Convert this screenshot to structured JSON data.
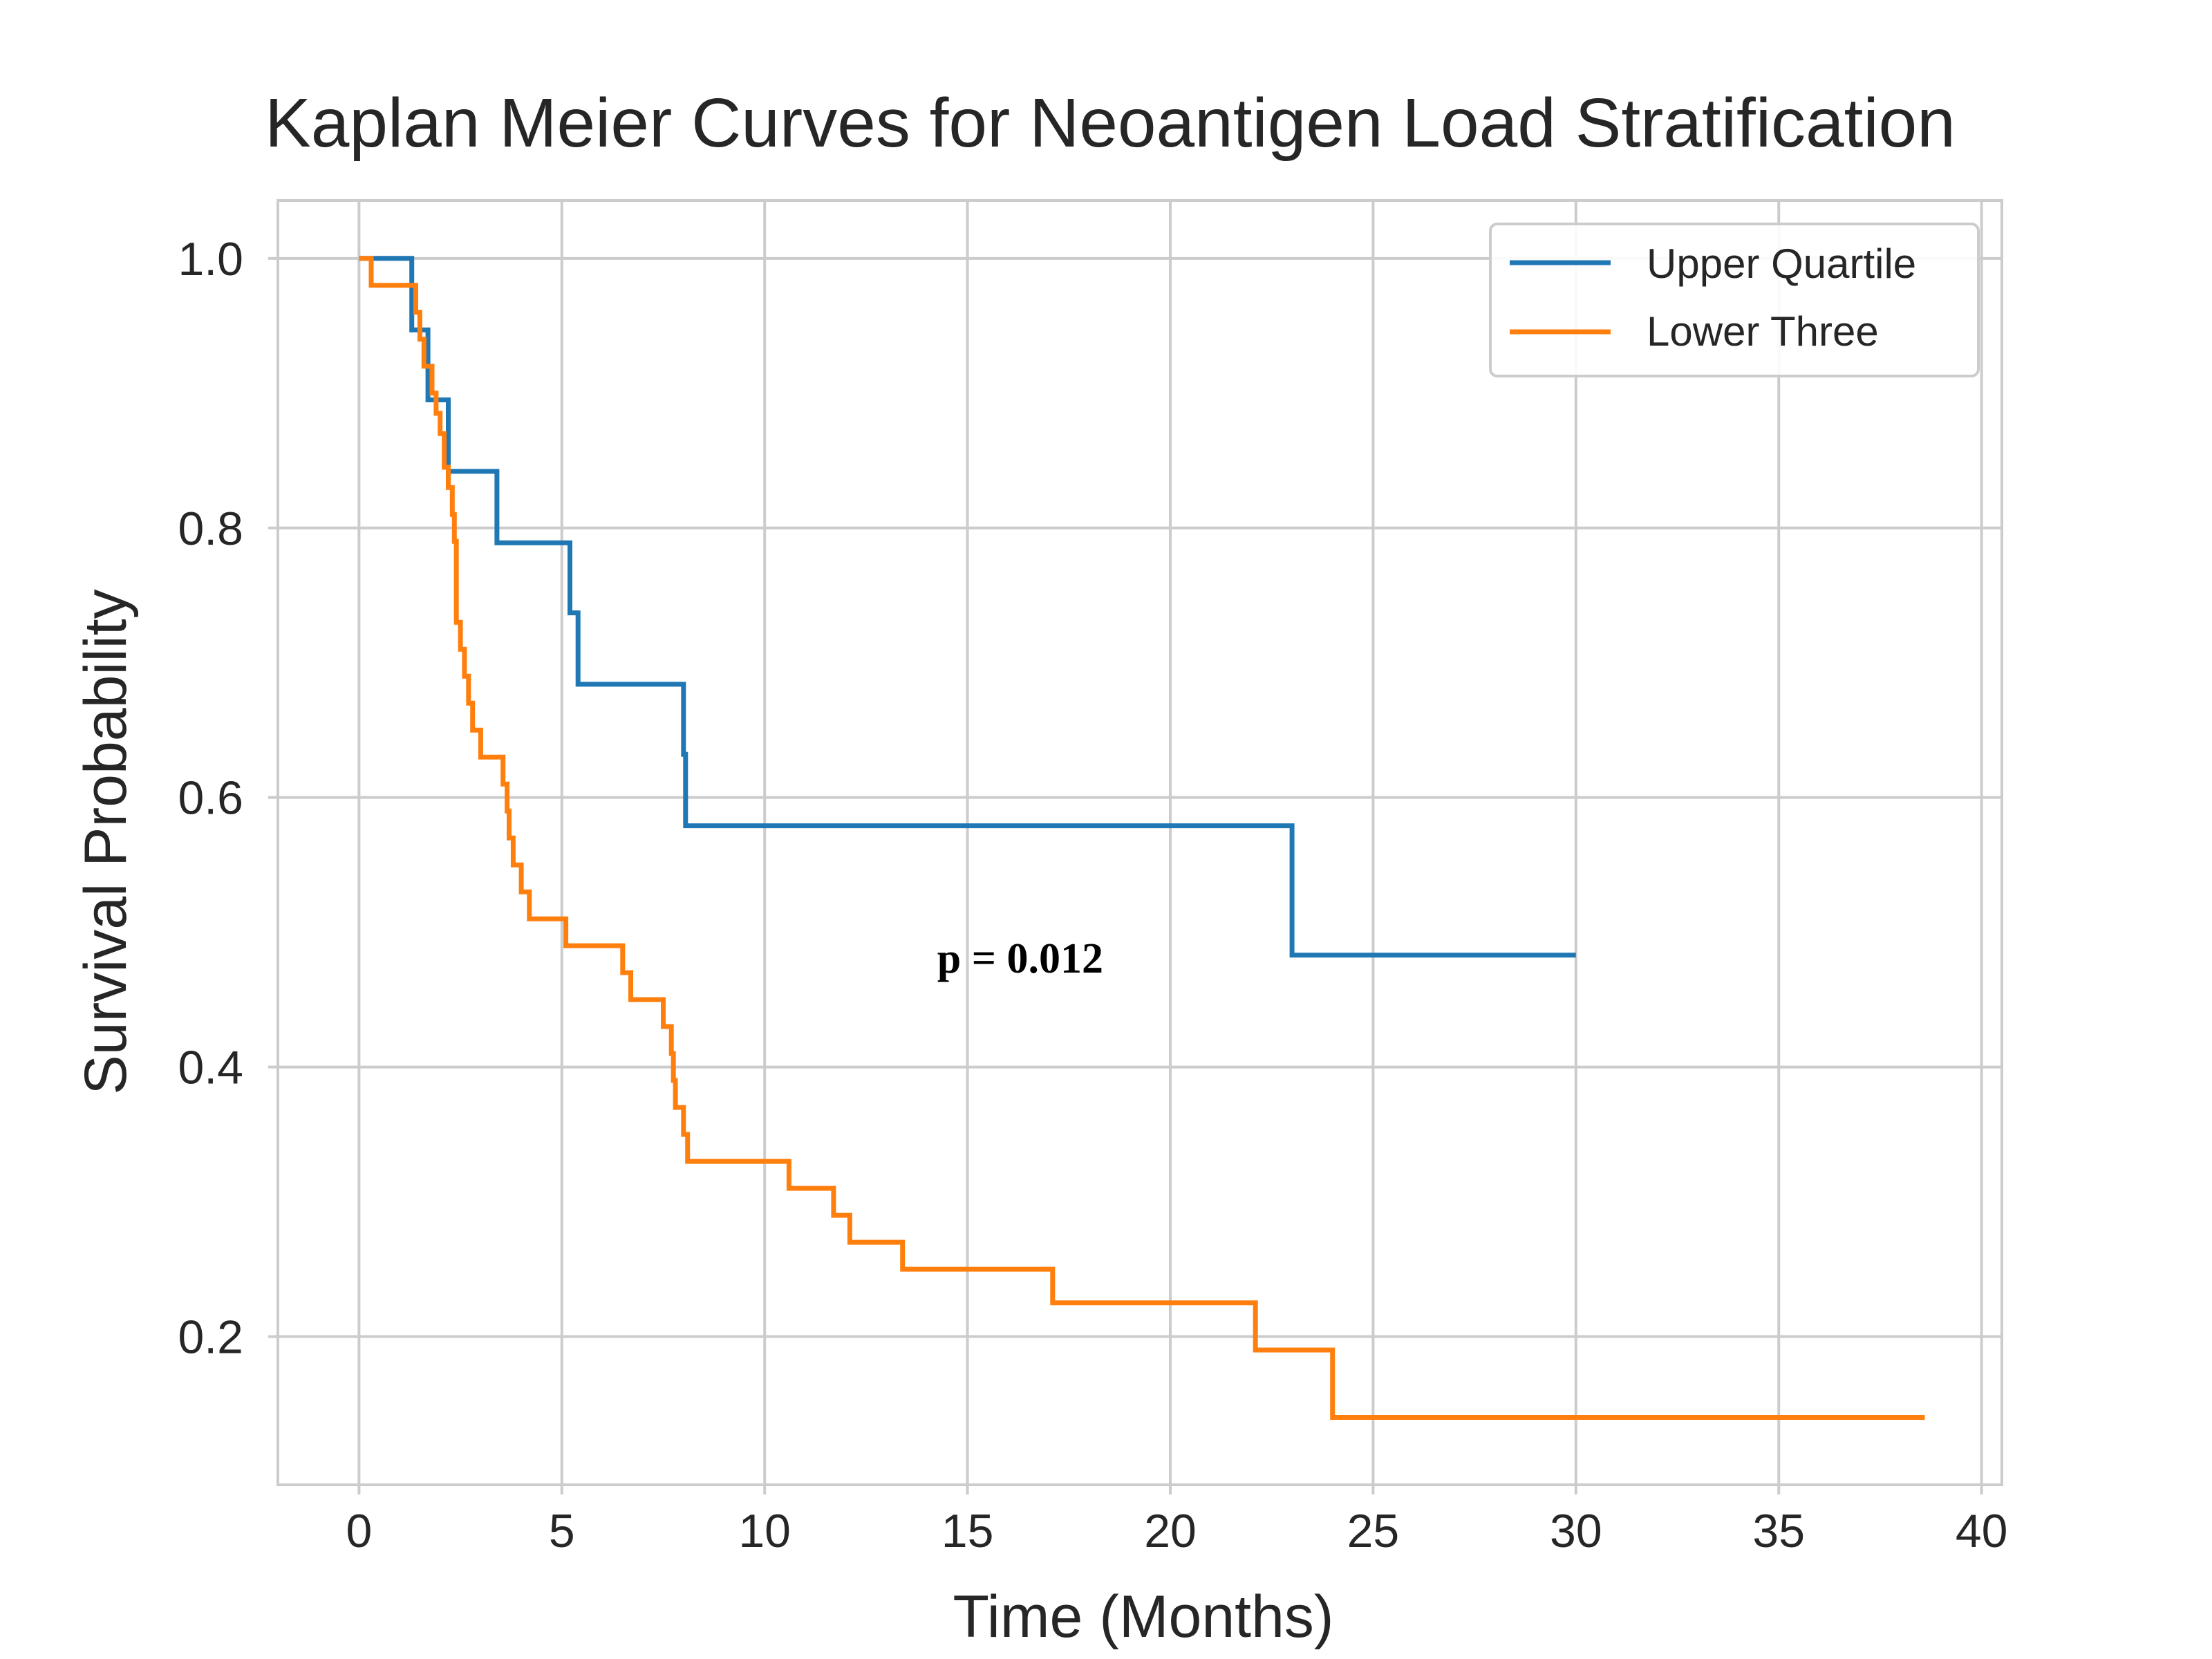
{
  "chart_data": {
    "type": "line",
    "title": "Kaplan Meier Curves for Neoantigen Load Stratification",
    "xlabel": "Time (Months)",
    "ylabel": "Survival Probability",
    "xlim": [
      -2,
      40.5
    ],
    "ylim": [
      0.09,
      1.043
    ],
    "xticks": [
      0,
      5,
      10,
      15,
      20,
      25,
      30,
      35,
      40
    ],
    "yticks": [
      0.2,
      0.4,
      0.6,
      0.8,
      1.0
    ],
    "xtick_labels": [
      "0",
      "5",
      "10",
      "15",
      "20",
      "25",
      "30",
      "35",
      "40"
    ],
    "ytick_labels": [
      "0.2",
      "0.4",
      "0.6",
      "0.8",
      "1.0"
    ],
    "grid": true,
    "legend_position": "top-right",
    "step": "post",
    "series": [
      {
        "name": "Upper Quartile",
        "color": "#1f77b4",
        "points": [
          [
            0,
            1.0
          ],
          [
            1.3,
            0.947
          ],
          [
            1.7,
            0.895
          ],
          [
            2.2,
            0.842
          ],
          [
            3.4,
            0.789
          ],
          [
            5.2,
            0.737
          ],
          [
            5.4,
            0.684
          ],
          [
            8.0,
            0.632
          ],
          [
            8.05,
            0.579
          ],
          [
            23.0,
            0.483
          ],
          [
            30.0,
            0.483
          ]
        ]
      },
      {
        "name": "Lower Three",
        "color": "#ff7f0e",
        "points": [
          [
            0,
            1.0
          ],
          [
            0.3,
            0.98
          ],
          [
            1.4,
            0.96
          ],
          [
            1.5,
            0.94
          ],
          [
            1.6,
            0.92
          ],
          [
            1.8,
            0.9
          ],
          [
            1.9,
            0.885
          ],
          [
            2.0,
            0.87
          ],
          [
            2.1,
            0.845
          ],
          [
            2.2,
            0.83
          ],
          [
            2.3,
            0.81
          ],
          [
            2.35,
            0.79
          ],
          [
            2.4,
            0.73
          ],
          [
            2.5,
            0.71
          ],
          [
            2.6,
            0.69
          ],
          [
            2.7,
            0.67
          ],
          [
            2.8,
            0.65
          ],
          [
            3.0,
            0.65
          ],
          [
            3.0,
            0.63
          ],
          [
            3.5,
            0.63
          ],
          [
            3.55,
            0.61
          ],
          [
            3.65,
            0.59
          ],
          [
            3.7,
            0.57
          ],
          [
            3.8,
            0.55
          ],
          [
            4.0,
            0.53
          ],
          [
            4.2,
            0.51
          ],
          [
            5.1,
            0.49
          ],
          [
            6.5,
            0.47
          ],
          [
            6.7,
            0.45
          ],
          [
            7.5,
            0.43
          ],
          [
            7.7,
            0.41
          ],
          [
            7.75,
            0.39
          ],
          [
            7.8,
            0.37
          ],
          [
            8.0,
            0.35
          ],
          [
            8.1,
            0.33
          ],
          [
            10.6,
            0.31
          ],
          [
            11.7,
            0.29
          ],
          [
            12.1,
            0.27
          ],
          [
            13.4,
            0.25
          ],
          [
            17.1,
            0.225
          ],
          [
            22.1,
            0.19
          ],
          [
            24.0,
            0.14
          ],
          [
            38.6,
            0.14
          ]
        ]
      }
    ],
    "annotations": [
      {
        "text": "p = 0.012",
        "x": 16.3,
        "y": 0.47
      }
    ]
  }
}
